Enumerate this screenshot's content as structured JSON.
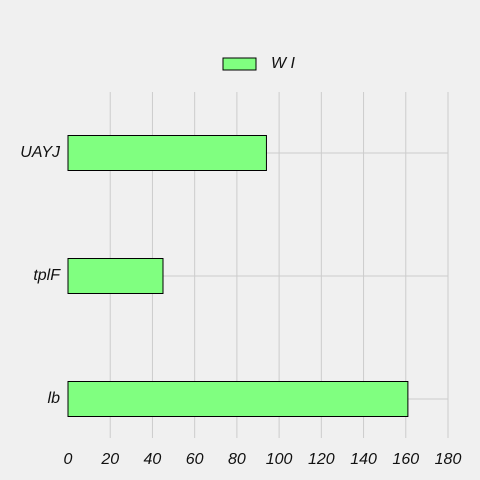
{
  "chart_data": {
    "type": "bar",
    "orientation": "horizontal",
    "categories": [
      "UAYJ",
      "tplF",
      "lb"
    ],
    "series": [
      {
        "name": "W I",
        "values": [
          94,
          45,
          161
        ],
        "color": "#80ff80"
      }
    ],
    "xlim": [
      0,
      180
    ],
    "xticks": [
      0,
      20,
      40,
      60,
      80,
      100,
      120,
      140,
      160,
      180
    ],
    "grid": true,
    "legend_position": "top-center",
    "title": "",
    "xlabel": "",
    "ylabel": ""
  }
}
